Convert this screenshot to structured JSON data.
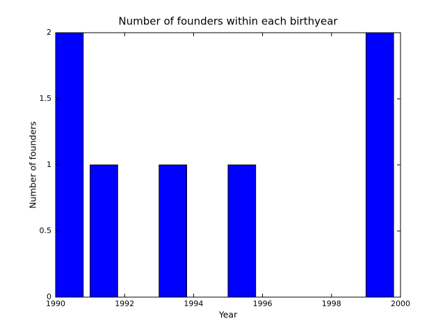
{
  "chart_data": {
    "type": "histogram",
    "title": "Number of founders within each birthyear",
    "x_label": "Year",
    "y_label": "Number of founders",
    "bins": [
      1990,
      1991,
      1992,
      1993,
      1994,
      1995,
      1996,
      1997,
      1998,
      1999,
      2000
    ],
    "values": [
      2,
      1,
      0,
      1,
      0,
      1,
      0,
      0,
      0,
      2
    ],
    "color": "#0000ff",
    "xlim": [
      1990,
      2000
    ],
    "xticks": [
      1990,
      1992,
      1994,
      1996,
      1998,
      2000
    ],
    "ylim": [
      0,
      2
    ],
    "yticks": [
      0,
      0.5,
      1,
      1.5,
      2
    ],
    "grid": false
  }
}
